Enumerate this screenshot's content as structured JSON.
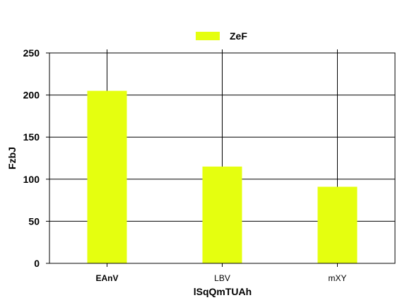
{
  "chart_data": {
    "type": "bar",
    "categories": [
      "EAnV",
      "LBV",
      "mXY"
    ],
    "series": [
      {
        "name": "ZeF",
        "values": [
          205,
          115,
          91
        ],
        "color": "#e5ff0f"
      }
    ],
    "xlabel": "lSqQmTUAh",
    "ylabel": "FzbJ",
    "ylim": [
      0,
      250
    ],
    "yticks": [
      0,
      50,
      100,
      150,
      200,
      250
    ],
    "bold_categories": [
      "EAnV"
    ],
    "grid": true,
    "legend": "top-center"
  }
}
